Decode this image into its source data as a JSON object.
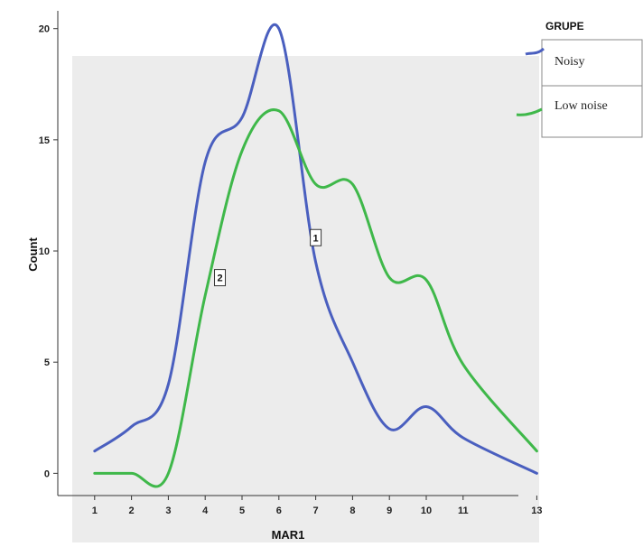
{
  "chart_data": {
    "type": "line",
    "title": "",
    "xlabel": "MAR1",
    "ylabel": "Count",
    "x": [
      1,
      2,
      3,
      4,
      5,
      6,
      7,
      8,
      9,
      10,
      11,
      13
    ],
    "x_tick_labels": [
      "1",
      "2",
      "3",
      "4",
      "5",
      "6",
      "7",
      "8",
      "9",
      "10",
      "11",
      "13"
    ],
    "y_ticks": [
      0,
      5,
      10,
      15,
      20
    ],
    "xlim": [
      0,
      12.5
    ],
    "ylim": [
      -1,
      20.8
    ],
    "grid": false,
    "legend_title": "GRUPE",
    "legend_placement": "right",
    "series": [
      {
        "name": "Noisy",
        "label": "1",
        "label_at": [
          7,
          10.6
        ],
        "color": "#4a5fbf",
        "values": [
          1,
          2.1,
          4,
          14,
          16,
          20,
          9.5,
          5,
          2,
          3,
          1.6,
          0
        ]
      },
      {
        "name": "Low noise",
        "label": "2",
        "label_at": [
          4.4,
          8.8
        ],
        "color": "#3fb84a",
        "values": [
          0,
          0,
          0,
          8,
          14.5,
          16.3,
          13,
          13,
          8.8,
          8.7,
          4.9,
          1
        ]
      }
    ],
    "plot_background": "#ececec"
  }
}
